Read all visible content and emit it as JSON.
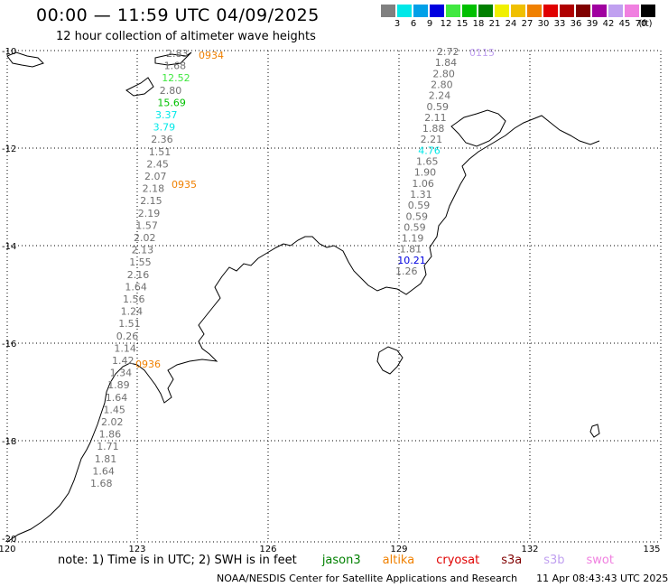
{
  "title": "00:00 — 11:59 UTC 04/09/2025",
  "subtitle": "12 hour collection of altimeter wave heights",
  "legend": {
    "unit": "(ft)",
    "bins": [
      {
        "label": "3",
        "color": "#808080"
      },
      {
        "label": "6",
        "color": "#00e8e8"
      },
      {
        "label": "9",
        "color": "#00a0e8"
      },
      {
        "label": "12",
        "color": "#0000e0"
      },
      {
        "label": "15",
        "color": "#40e840"
      },
      {
        "label": "18",
        "color": "#00c000"
      },
      {
        "label": "21",
        "color": "#008000"
      },
      {
        "label": "24",
        "color": "#f0f000"
      },
      {
        "label": "27",
        "color": "#f0c000"
      },
      {
        "label": "30",
        "color": "#f08000"
      },
      {
        "label": "33",
        "color": "#e00000"
      },
      {
        "label": "36",
        "color": "#b00000"
      },
      {
        "label": "39",
        "color": "#800000"
      },
      {
        "label": "42",
        "color": "#a000a0"
      },
      {
        "label": "45",
        "color": "#c0a0f0"
      },
      {
        "label": "70",
        "color": "#f080e0"
      },
      {
        "label": "",
        "color": "#000000"
      }
    ]
  },
  "axes": {
    "lon_labels": [
      "120",
      "123",
      "126",
      "129",
      "132",
      "135"
    ],
    "lat_labels": [
      "-10",
      "-12",
      "-14",
      "-16",
      "-18",
      "-20"
    ]
  },
  "tracks": [
    {
      "name": "west",
      "time_labels": [
        "0934",
        "0935",
        "0936"
      ],
      "values": [
        "2.83",
        "1.68",
        "12.52",
        "2.80",
        "15.69",
        "3.37",
        "3.79",
        "2.36",
        "1.51",
        "2.45",
        "2.07",
        "2.18",
        "2.15",
        "2.19",
        "1.57",
        "2.02",
        "2.13",
        "1.55",
        "2.16",
        "1.64",
        "1.56",
        "1.24",
        "1.51",
        "0.26",
        "1.14",
        "1.42",
        "1.34",
        "1.89",
        "1.64",
        "1.45",
        "2.02",
        "1.86",
        "1.71",
        "1.81",
        "1.64",
        "1.68"
      ]
    },
    {
      "name": "east",
      "time_labels": [
        "0115"
      ],
      "values": [
        "2.72",
        "1.84",
        "2.80",
        "2.80",
        "2.24",
        "0.59",
        "2.11",
        "1.88",
        "2.21",
        "4.76",
        "1.65",
        "1.90",
        "1.06",
        "1.31",
        "0.59",
        "0.59",
        "0.59",
        "1.19",
        "1.81",
        "10.21",
        "1.26"
      ]
    }
  ],
  "note": {
    "text": "note: 1) Time is in UTC; 2) SWH is in feet",
    "satellites": [
      {
        "name": "jason3",
        "color": "#008000"
      },
      {
        "name": "altika",
        "color": "#f08000"
      },
      {
        "name": "cryosat",
        "color": "#e00000"
      },
      {
        "name": "s3a",
        "color": "#800000"
      },
      {
        "name": "s3b",
        "color": "#c0a0f0"
      },
      {
        "name": "swot",
        "color": "#f080e0"
      }
    ]
  },
  "credit": {
    "org": "NOAA/NESDIS Center for Satellite Applications and Research",
    "timestamp": "11 Apr 08:43:43 UTC 2025"
  }
}
